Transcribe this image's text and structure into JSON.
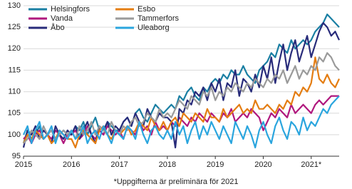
{
  "chart_data": {
    "type": "line",
    "footnote": "*Uppgifterna är preliminära för 2021",
    "categories": [
      "2015",
      null,
      null,
      null,
      null,
      null,
      null,
      null,
      null,
      null,
      null,
      null,
      "2016",
      null,
      null,
      null,
      null,
      null,
      null,
      null,
      null,
      null,
      null,
      null,
      "2017",
      null,
      null,
      null,
      null,
      null,
      null,
      null,
      null,
      null,
      null,
      null,
      "2018",
      null,
      null,
      null,
      null,
      null,
      null,
      null,
      null,
      null,
      null,
      null,
      "2019",
      null,
      null,
      null,
      null,
      null,
      null,
      null,
      null,
      null,
      null,
      null,
      "2020",
      null,
      null,
      null,
      null,
      null,
      null,
      null,
      null,
      null,
      null,
      null,
      "2021*",
      null,
      null,
      null,
      null,
      null,
      null,
      null
    ],
    "ylim": [
      95,
      130
    ],
    "yticks": [
      95,
      100,
      105,
      110,
      115,
      120,
      125,
      130
    ],
    "grid": true,
    "legend": "upper left",
    "series": [
      {
        "name": "Helsingfors",
        "color": "#1a7fa3",
        "values": [
          98,
          101,
          99,
          100,
          102,
          99,
          100,
          101,
          99,
          100,
          101,
          100,
          100,
          102,
          101,
          103,
          100,
          102,
          104,
          101,
          100,
          103,
          102,
          101,
          101,
          103,
          104,
          102,
          105,
          106,
          104,
          103,
          105,
          107,
          106,
          105,
          106,
          107,
          106,
          109,
          108,
          110,
          111,
          109,
          108,
          111,
          110,
          112,
          113,
          112,
          114,
          113,
          115,
          114,
          114,
          116,
          114,
          113,
          112,
          115,
          116,
          117,
          119,
          118,
          121,
          120,
          119,
          122,
          120,
          121,
          122,
          121,
          122,
          124,
          125,
          126,
          128,
          127,
          126,
          125
        ]
      },
      {
        "name": "Vanda",
        "color": "#b0177d",
        "values": [
          99,
          100,
          98,
          100,
          101,
          99,
          100,
          99,
          101,
          100,
          98,
          100,
          100,
          101,
          99,
          100,
          102,
          100,
          99,
          101,
          100,
          102,
          101,
          100,
          101,
          99,
          102,
          101,
          100,
          103,
          101,
          102,
          100,
          103,
          101,
          102,
          101,
          103,
          102,
          104,
          103,
          102,
          104,
          103,
          105,
          104,
          103,
          105,
          104,
          103,
          105,
          104,
          106,
          103,
          104,
          105,
          104,
          106,
          105,
          104,
          101,
          103,
          105,
          104,
          106,
          105,
          104,
          107,
          105,
          106,
          107,
          106,
          105,
          107,
          108,
          107,
          108,
          109,
          109,
          109
        ]
      },
      {
        "name": "Åbo",
        "color": "#282b7a",
        "values": [
          97,
          101,
          100,
          102,
          99,
          101,
          100,
          98,
          102,
          100,
          99,
          101,
          100,
          102,
          99,
          101,
          103,
          100,
          98,
          102,
          101,
          103,
          100,
          102,
          101,
          103,
          104,
          102,
          105,
          103,
          102,
          106,
          104,
          103,
          105,
          104,
          104,
          103,
          97,
          106,
          105,
          108,
          107,
          110,
          109,
          111,
          108,
          112,
          110,
          113,
          108,
          112,
          111,
          115,
          109,
          113,
          112,
          110,
          114,
          111,
          116,
          113,
          118,
          112,
          117,
          121,
          115,
          119,
          122,
          117,
          120,
          123,
          118,
          121,
          124,
          126,
          125,
          123,
          124,
          122
        ]
      },
      {
        "name": "Esbo",
        "color": "#e47d12",
        "values": [
          98,
          100,
          99,
          101,
          100,
          99,
          100,
          98,
          99,
          101,
          100,
          99,
          99,
          97,
          100,
          101,
          100,
          99,
          98,
          101,
          102,
          100,
          99,
          101,
          100,
          101,
          102,
          100,
          101,
          103,
          102,
          101,
          104,
          102,
          101,
          103,
          101,
          103,
          104,
          102,
          105,
          104,
          103,
          105,
          104,
          103,
          106,
          104,
          104,
          103,
          106,
          104,
          105,
          106,
          107,
          105,
          106,
          105,
          108,
          106,
          106,
          107,
          106,
          105,
          107,
          106,
          108,
          107,
          110,
          109,
          111,
          110,
          112,
          118,
          113,
          112,
          114,
          112,
          111,
          113
        ]
      },
      {
        "name": "Tammerfors",
        "color": "#9a9a9a",
        "values": [
          98,
          99,
          101,
          100,
          99,
          102,
          100,
          101,
          99,
          100,
          101,
          100,
          101,
          99,
          102,
          100,
          101,
          103,
          100,
          102,
          101,
          100,
          103,
          101,
          100,
          102,
          101,
          103,
          104,
          102,
          103,
          105,
          104,
          103,
          106,
          104,
          105,
          104,
          106,
          108,
          107,
          106,
          109,
          108,
          107,
          110,
          109,
          111,
          108,
          110,
          109,
          111,
          110,
          112,
          111,
          110,
          112,
          111,
          113,
          112,
          111,
          113,
          112,
          114,
          113,
          115,
          112,
          114,
          116,
          113,
          115,
          114,
          116,
          115,
          118,
          117,
          119,
          118,
          116,
          115
        ]
      },
      {
        "name": "Uleaborg",
        "color": "#2aa5de",
        "values": [
          100,
          102,
          98,
          101,
          103,
          99,
          100,
          102,
          98,
          101,
          100,
          99,
          101,
          99,
          100,
          102,
          98,
          100,
          101,
          99,
          102,
          100,
          98,
          101,
          100,
          99,
          102,
          101,
          99,
          103,
          100,
          98,
          101,
          102,
          100,
          99,
          101,
          99,
          103,
          100,
          102,
          98,
          101,
          103,
          99,
          102,
          100,
          103,
          101,
          99,
          102,
          100,
          98,
          103,
          101,
          99,
          102,
          100,
          97,
          101,
          103,
          100,
          98,
          102,
          104,
          101,
          99,
          103,
          102,
          100,
          104,
          101,
          103,
          102,
          104,
          106,
          105,
          107,
          108,
          109
        ]
      }
    ]
  }
}
